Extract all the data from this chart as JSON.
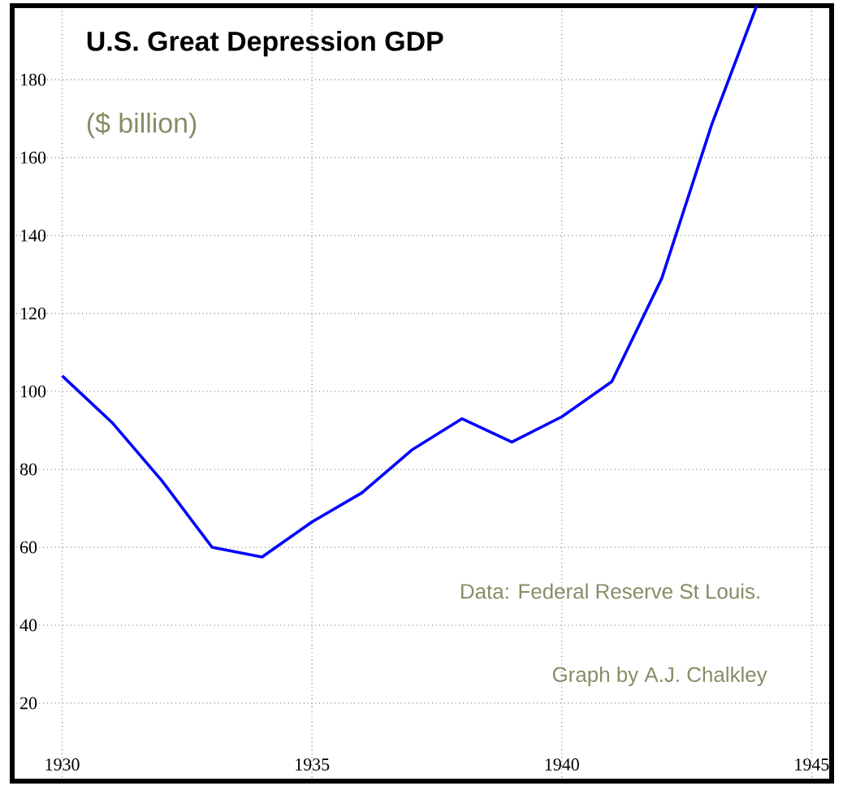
{
  "chart_data": {
    "type": "line",
    "title": "U.S. Great Depression GDP",
    "subtitle": "($ billion)",
    "x": [
      1930,
      1931,
      1932,
      1933,
      1934,
      1935,
      1936,
      1937,
      1938,
      1939,
      1940,
      1941,
      1942,
      1943,
      1943.9
    ],
    "series": [
      {
        "color": "#0000ff",
        "values": [
          104,
          92,
          77,
          60,
          57.5,
          66.5,
          74,
          85,
          93,
          87,
          93.5,
          102.5,
          129,
          168.5,
          199
        ]
      }
    ],
    "xlim": [
      1929,
      1945.4
    ],
    "ylim": [
      0,
      199
    ],
    "xticks": [
      1930,
      1935,
      1940,
      1945
    ],
    "yticks": [
      20,
      40,
      60,
      80,
      100,
      120,
      140,
      160,
      180
    ],
    "grid": true,
    "line_style": "solid",
    "marker": "none",
    "annotations": [
      "Data: Federal Reserve St Louis.",
      "Graph by A.J. Chalkley"
    ]
  }
}
